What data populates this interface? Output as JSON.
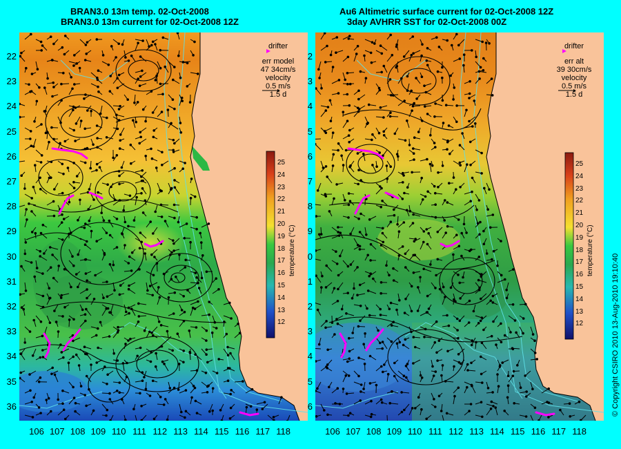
{
  "left_panel": {
    "title_line1": "BRAN3.0 13m temp. 02-Oct-2008",
    "title_line2": "BRAN3.0 13m current for 02-Oct-2008 12Z",
    "legend": {
      "drifter_label": "drifter",
      "err_label": "err model",
      "err_value": "47 34cm/s",
      "velocity_label": "velocity",
      "velocity_value": "0.5 m/s",
      "duration": "1.5 d"
    }
  },
  "right_panel": {
    "title_line1": "Au6 Altimetric surface current for 02-Oct-2008 12Z",
    "title_line2": "3day AVHRR SST for 02-Oct-2008 00Z",
    "legend": {
      "drifter_label": "drifter",
      "err_label": "err alt",
      "err_value": "39 30cm/s",
      "velocity_label": "velocity",
      "velocity_value": "0.5 m/s",
      "duration": "1.5 d"
    }
  },
  "lat_ticks": [
    "22",
    "23",
    "24",
    "25",
    "26",
    "27",
    "28",
    "29",
    "30",
    "31",
    "32",
    "33",
    "34",
    "35",
    "36"
  ],
  "lon_ticks": [
    "106",
    "107",
    "108",
    "109",
    "110",
    "111",
    "112",
    "113",
    "114",
    "115",
    "116",
    "117",
    "118"
  ],
  "colorbar": {
    "title": "temperature (°C)",
    "labels": [
      "25",
      "24",
      "23",
      "22",
      "21",
      "20",
      "19",
      "18",
      "17",
      "16",
      "15",
      "14",
      "13",
      "12"
    ]
  },
  "copyright": "© Copyright CSIRO 2010   13-Aug-2010 19:10:40",
  "colors": {
    "background": "#00ffff",
    "land": "#f9c39a",
    "drifter": "#ff00ff",
    "contour": "#5fe0e8"
  }
}
